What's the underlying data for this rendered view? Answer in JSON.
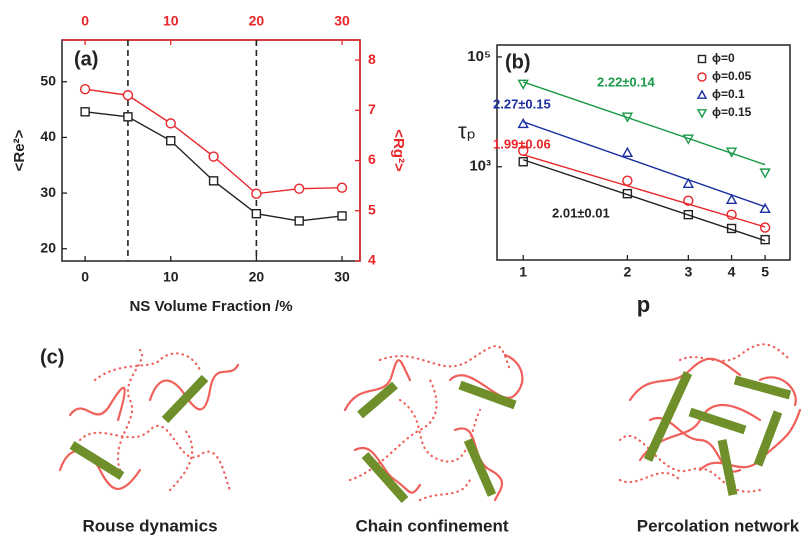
{
  "chart_data": [
    {
      "type": "line",
      "panel_label": "(a)",
      "xlabel": "NS Volume Fraction /%",
      "ylabel": "<Re²>",
      "y2label": "<Rg²>",
      "x": [
        0,
        5,
        10,
        15,
        20,
        25,
        30
      ],
      "xlim": [
        -2.7,
        32.1
      ],
      "xticks": [
        0,
        10,
        20,
        30
      ],
      "x2lim": [
        -2.7,
        32.1
      ],
      "x2ticks": [
        0,
        10,
        20,
        30
      ],
      "x2color": "#e8262a",
      "ylim": [
        17.8,
        57.5
      ],
      "yticks": [
        20,
        30,
        40,
        50
      ],
      "y2lim": [
        4,
        8.4
      ],
      "y2ticks": [
        4,
        5,
        6,
        7,
        8
      ],
      "y2color": "#e8262a",
      "vlines": [
        5,
        20
      ],
      "series": [
        {
          "color": "#222222",
          "marker": "square",
          "values": [
            44.6,
            43.7,
            39.4,
            32.2,
            26.3,
            25.0,
            25.9
          ]
        },
        {
          "color": "#e8262a",
          "marker": "circle",
          "axis": "y2",
          "values": [
            7.42,
            7.3,
            6.74,
            6.08,
            5.34,
            5.44,
            5.46
          ]
        }
      ]
    },
    {
      "type": "scatter",
      "panel_label": "(b)",
      "xlabel": "p",
      "ylabel": "τₚ",
      "log_x": true,
      "log_y": true,
      "x": [
        1,
        2,
        3,
        4,
        5
      ],
      "xlim": [
        0.84,
        5.9
      ],
      "xticks": [
        1,
        2,
        3,
        4,
        5
      ],
      "ylim": [
        20,
        165000
      ],
      "yticks": [
        {
          "value": 1000,
          "label": "10³"
        },
        {
          "value": 100000,
          "label": "10⁵"
        }
      ],
      "fit_x": [
        1,
        5
      ],
      "legend": "upper right",
      "series": [
        {
          "name": "ϕ=0",
          "color": "#222222",
          "marker": "square",
          "values": [
            1233,
            323,
            134,
            75,
            47
          ],
          "fit": [
            1340,
            45
          ],
          "annotation": "2.01±0.01"
        },
        {
          "name": "ϕ=0.05",
          "color": "#e8262a",
          "marker": "circle",
          "values": [
            1954,
            556,
            241,
            134,
            78
          ],
          "fit": [
            1650,
            80
          ],
          "annotation": "1.99±0.06"
        },
        {
          "name": "ϕ=0.1",
          "color": "#1b2fa0",
          "marker": "triangle-up",
          "values": [
            6050,
            1800,
            491,
            251,
            172
          ],
          "fit": [
            6580,
            187
          ],
          "annotation": "2.27±0.15"
        },
        {
          "name": "ϕ=0.15",
          "color": "#1a9a48",
          "marker": "triangle-down",
          "values": [
            32300,
            8110,
            3230,
            1874,
            778
          ],
          "fit": [
            35100,
            1090
          ],
          "annotation": "2.22±0.14"
        }
      ]
    }
  ],
  "diagram": {
    "label": "(c)",
    "captions": [
      "Rouse dynamics",
      "Chain confinement",
      "Percolation network"
    ]
  }
}
